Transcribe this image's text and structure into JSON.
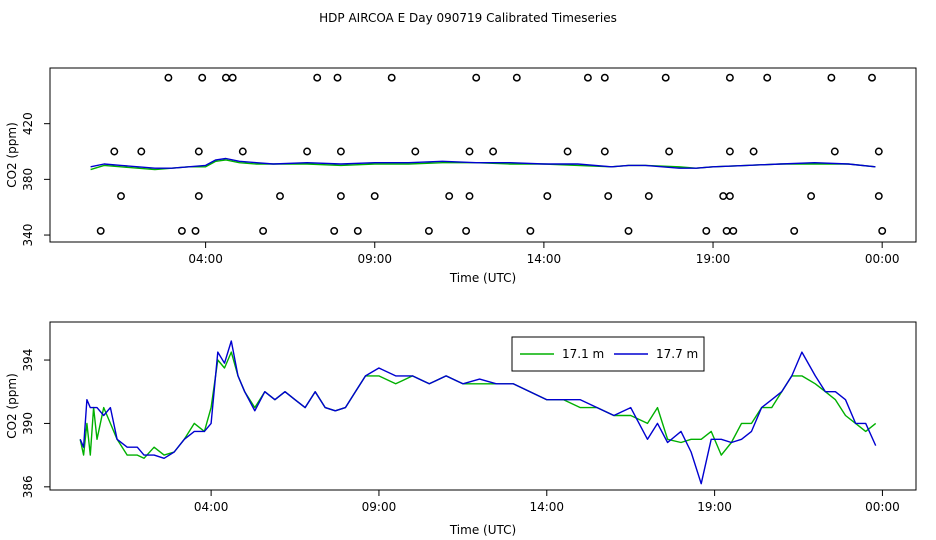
{
  "page_title": "HDP AIRCOA E  Day 090719  Calibrated Timeseries",
  "colors": {
    "series_17_1": "#00b000",
    "series_17_7": "#0000d0",
    "axis": "#000000"
  },
  "chart_data": [
    {
      "type": "line",
      "xlabel": "Time (UTC)",
      "ylabel": "CO2 (ppm)",
      "x_unit": "hours UTC",
      "xticks": [
        {
          "x": 4,
          "label": "04:00"
        },
        {
          "x": 9,
          "label": "09:00"
        },
        {
          "x": 14,
          "label": "14:00"
        },
        {
          "x": 19,
          "label": "19:00"
        },
        {
          "x": 24,
          "label": "00:00"
        }
      ],
      "yticks": [
        340,
        380,
        420
      ],
      "xlim": [
        -0.6,
        25
      ],
      "ylim": [
        335,
        460
      ],
      "grid": false,
      "series": [
        {
          "color": "#00b000",
          "x": [
            0.6,
            1,
            1.5,
            2,
            2.5,
            3,
            3.5,
            4,
            4.3,
            4.6,
            5,
            5.5,
            6,
            7,
            8,
            9,
            10,
            11,
            12,
            13,
            14,
            15,
            16,
            16.5,
            17,
            18,
            18.5,
            19,
            20,
            21,
            22,
            23,
            23.8
          ],
          "y": [
            387,
            390,
            389,
            388,
            387,
            388,
            389,
            389,
            393,
            394,
            392,
            391,
            391,
            391,
            390,
            391,
            391,
            392,
            392,
            391,
            391,
            390,
            389,
            390,
            390,
            389,
            388,
            389,
            390,
            391,
            391,
            391,
            389
          ]
        },
        {
          "color": "#0000d0",
          "x": [
            0.6,
            1,
            1.5,
            2,
            2.5,
            3,
            3.5,
            4,
            4.3,
            4.6,
            5,
            5.5,
            6,
            7,
            8,
            9,
            10,
            11,
            12,
            13,
            14,
            15,
            16,
            16.5,
            17,
            18,
            18.5,
            19,
            20,
            21,
            22,
            23,
            23.8
          ],
          "y": [
            389,
            391,
            390,
            389,
            388,
            388,
            389,
            390,
            394,
            395,
            393,
            392,
            391,
            392,
            391,
            392,
            392,
            393,
            392,
            392,
            391,
            391,
            389,
            390,
            390,
            388,
            388,
            389,
            390,
            391,
            392,
            391,
            389
          ]
        }
      ],
      "points": {
        "x": [
          1.5,
          2.9,
          1.3,
          3.8,
          0.9,
          2.1,
          3.3,
          3.8,
          3.9,
          4.6,
          3.7,
          5.7,
          5.1,
          6.2,
          4.8,
          7.3,
          7,
          7.9,
          8,
          8,
          7.8,
          8.5,
          9,
          10.2,
          9.5,
          10.6,
          11.2,
          12,
          11.8,
          11.8,
          11.7,
          13.2,
          12.5,
          13.6,
          14.1,
          14.7,
          15.3,
          15.8,
          15.8,
          15.9,
          16.5,
          17.1,
          17.6,
          17.7,
          18.8,
          19.3,
          19.5,
          19.5,
          19.5,
          19.6,
          19.4,
          20.2,
          20.6,
          21.4,
          21.9,
          22.5,
          22.6,
          23.7,
          23.9,
          23.9,
          24
        ],
        "y": [
          368,
          453,
          400,
          368,
          343,
          400,
          343,
          400,
          453,
          453,
          343,
          343,
          400,
          368,
          453,
          453,
          400,
          453,
          400,
          368,
          343,
          343,
          368,
          400,
          453,
          343,
          368,
          453,
          400,
          368,
          343,
          453,
          400,
          343,
          368,
          400,
          453,
          453,
          400,
          368,
          343,
          368,
          453,
          400,
          343,
          368,
          453,
          400,
          368,
          343,
          343,
          400,
          453,
          343,
          368,
          453,
          400,
          453,
          400,
          368,
          343
        ]
      }
    },
    {
      "type": "line",
      "xlabel": "Time (UTC)",
      "ylabel": "CO2 (ppm)",
      "x_unit": "hours UTC",
      "xticks": [
        {
          "x": 4,
          "label": "04:00"
        },
        {
          "x": 9,
          "label": "09:00"
        },
        {
          "x": 14,
          "label": "14:00"
        },
        {
          "x": 19,
          "label": "19:00"
        },
        {
          "x": 24,
          "label": "00:00"
        }
      ],
      "yticks": [
        386,
        390,
        394
      ],
      "xlim": [
        -0.8,
        25
      ],
      "ylim": [
        385.8,
        396.4
      ],
      "grid": false,
      "legend": {
        "placement": "top-center",
        "entries": [
          {
            "label": "17.1 m",
            "color": "#00b000"
          },
          {
            "label": "17.7 m",
            "color": "#0000d0"
          }
        ]
      },
      "series": [
        {
          "name": "17.1 m",
          "color": "#00b000",
          "x": [
            0.1,
            0.2,
            0.3,
            0.4,
            0.5,
            0.6,
            0.8,
            1,
            1.2,
            1.5,
            1.8,
            2,
            2.3,
            2.6,
            2.9,
            3.2,
            3.5,
            3.8,
            4,
            4.2,
            4.4,
            4.6,
            4.8,
            5,
            5.3,
            5.6,
            5.9,
            6.2,
            6.5,
            6.8,
            7.1,
            7.4,
            7.7,
            8,
            8.3,
            8.6,
            9,
            9.5,
            10,
            10.5,
            11,
            11.5,
            12,
            12.5,
            13,
            13.5,
            14,
            14.5,
            15,
            15.5,
            16,
            16.5,
            17,
            17.3,
            17.6,
            18,
            18.3,
            18.6,
            18.9,
            19.2,
            19.5,
            19.8,
            20.1,
            20.4,
            20.7,
            21,
            21.3,
            21.6,
            22,
            22.3,
            22.6,
            22.9,
            23.2,
            23.5,
            23.8
          ],
          "y": [
            389,
            388,
            390,
            388,
            391,
            389,
            391,
            390,
            389,
            388,
            388,
            387.8,
            388.5,
            388,
            388.2,
            389,
            390,
            389.5,
            391,
            394,
            393.5,
            394.5,
            393,
            392,
            391,
            392,
            391.5,
            392,
            391.5,
            391,
            392,
            391,
            390.8,
            391,
            392,
            393,
            393,
            392.5,
            393,
            392.5,
            393,
            392.5,
            392.5,
            392.5,
            392.5,
            392,
            391.5,
            391.5,
            391,
            391,
            390.5,
            390.5,
            390,
            391,
            389,
            388.8,
            389,
            389,
            389.5,
            388,
            388.8,
            390,
            390,
            391,
            391,
            392,
            393,
            393,
            392.5,
            392,
            391.5,
            390.5,
            390,
            389.5,
            390
          ]
        },
        {
          "name": "17.7 m",
          "color": "#0000d0",
          "x": [
            0.1,
            0.2,
            0.3,
            0.4,
            0.5,
            0.6,
            0.8,
            1,
            1.2,
            1.5,
            1.8,
            2,
            2.3,
            2.6,
            2.9,
            3.2,
            3.5,
            3.8,
            4,
            4.2,
            4.4,
            4.6,
            4.8,
            5,
            5.3,
            5.6,
            5.9,
            6.2,
            6.5,
            6.8,
            7.1,
            7.4,
            7.7,
            8,
            8.3,
            8.6,
            9,
            9.5,
            10,
            10.5,
            11,
            11.5,
            12,
            12.5,
            13,
            13.5,
            14,
            14.5,
            15,
            15.5,
            16,
            16.5,
            17,
            17.3,
            17.6,
            18,
            18.3,
            18.6,
            18.9,
            19.2,
            19.5,
            19.8,
            20.1,
            20.4,
            20.7,
            21,
            21.3,
            21.6,
            22,
            22.3,
            22.6,
            22.9,
            23.2,
            23.5,
            23.8
          ],
          "y": [
            389,
            388.5,
            391.5,
            391,
            391,
            391,
            390.5,
            391,
            389,
            388.5,
            388.5,
            388,
            388,
            387.8,
            388.2,
            389,
            389.5,
            389.5,
            390,
            394.5,
            393.8,
            395.2,
            393,
            392,
            390.8,
            392,
            391.5,
            392,
            391.5,
            391,
            392,
            391,
            390.8,
            391,
            392,
            393,
            393.5,
            393,
            393,
            392.5,
            393,
            392.5,
            392.8,
            392.5,
            392.5,
            392,
            391.5,
            391.5,
            391.5,
            391,
            390.5,
            391,
            389,
            390,
            388.8,
            389.5,
            388.2,
            386.2,
            389,
            389,
            388.8,
            389,
            389.5,
            391,
            391.5,
            392,
            393,
            394.5,
            393,
            392,
            392,
            391.5,
            390,
            390,
            388.6
          ]
        }
      ]
    }
  ]
}
